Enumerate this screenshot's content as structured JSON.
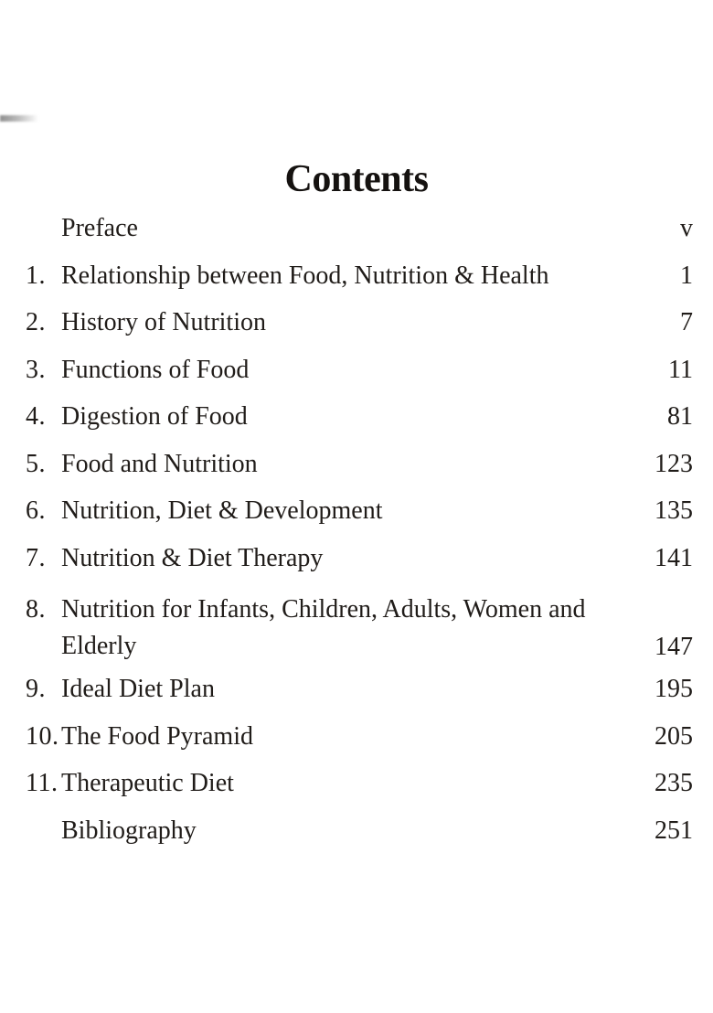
{
  "page": {
    "title": "Contents",
    "entries": [
      {
        "num": "",
        "title": "Preface",
        "page": "v"
      },
      {
        "num": "1.",
        "title": "Relationship between Food, Nutrition & Health",
        "page": "1"
      },
      {
        "num": "2.",
        "title": "History of Nutrition",
        "page": "7"
      },
      {
        "num": "3.",
        "title": "Functions of Food",
        "page": "11"
      },
      {
        "num": "4.",
        "title": "Digestion of Food",
        "page": "81"
      },
      {
        "num": "5.",
        "title": "Food and Nutrition",
        "page": "123"
      },
      {
        "num": "6.",
        "title": "Nutrition, Diet & Development",
        "page": "135"
      },
      {
        "num": "7.",
        "title": "Nutrition & Diet Therapy",
        "page": "141"
      },
      {
        "num": "8.",
        "title": "Nutrition for Infants, Children, Adults, Women and",
        "title_line2": "Elderly",
        "page": "147"
      },
      {
        "num": "9.",
        "title": "Ideal Diet Plan",
        "page": "195"
      },
      {
        "num": "10.",
        "title": "The Food Pyramid",
        "page": "205"
      },
      {
        "num": "11.",
        "title": "Therapeutic Diet",
        "page": "235"
      },
      {
        "num": "",
        "title": "Bibliography",
        "page": "251"
      }
    ]
  },
  "colors": {
    "text": "#201c19",
    "heading": "#151210",
    "background": "#ffffff",
    "scan_artifact": "#8f8f8f"
  }
}
